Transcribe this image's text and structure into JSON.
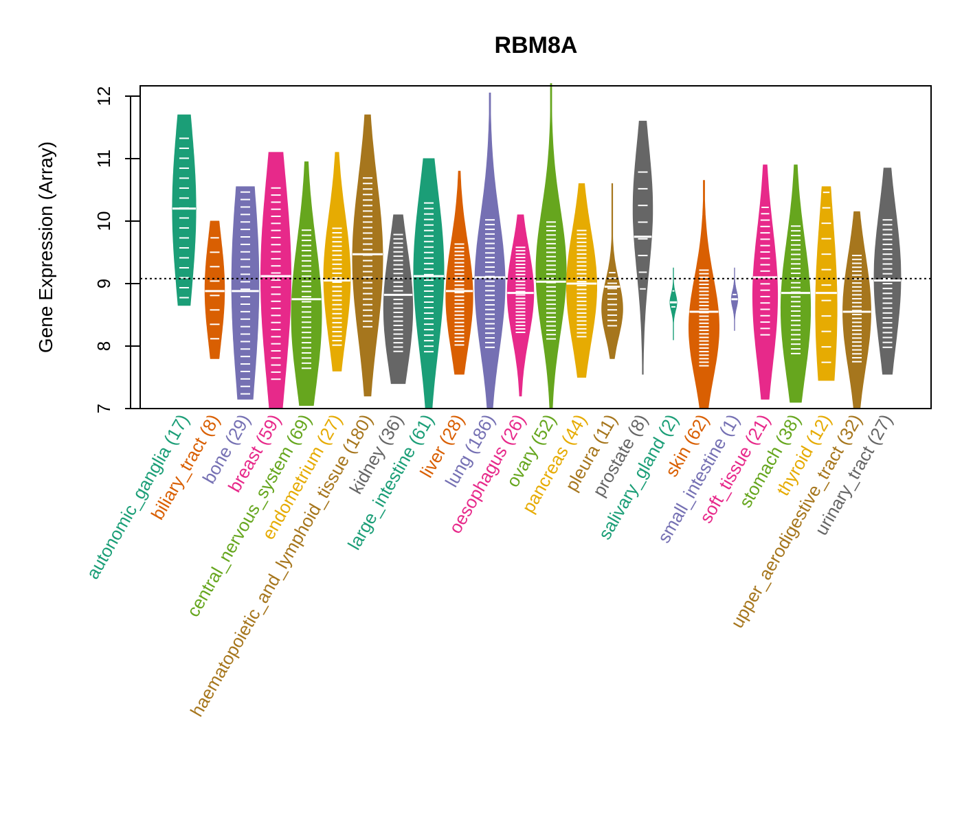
{
  "chart_data": {
    "type": "violin",
    "title": "RBM8A",
    "xlabel": "",
    "ylabel": "Gene Expression (Array)",
    "ylim": [
      7,
      12.2
    ],
    "yticks": [
      7,
      8,
      9,
      10,
      11,
      12
    ],
    "reference_line": {
      "value": 9.08,
      "style": "dotted",
      "color": "#000000"
    },
    "grid": false,
    "legend": "none",
    "categories": [
      {
        "name": "autonomic_ganglia",
        "n": 17,
        "label": "autonomic_ganglia (17)",
        "color": "#1B9E77",
        "min": 8.65,
        "max": 11.7,
        "median": 10.2,
        "q_low": 9.3,
        "q_high": 10.8,
        "density_peak": 10.2
      },
      {
        "name": "biliary_tract",
        "n": 8,
        "label": "biliary_tract (8)",
        "color": "#D95F02",
        "min": 7.8,
        "max": 10.0,
        "median": 8.88,
        "q_low": 8.45,
        "q_high": 9.4,
        "density_peak": 8.9
      },
      {
        "name": "bone",
        "n": 29,
        "label": "bone (29)",
        "color": "#7570B3",
        "min": 7.15,
        "max": 10.55,
        "median": 8.88,
        "q_low": 7.9,
        "q_high": 9.8,
        "density_peak": 9.0
      },
      {
        "name": "breast",
        "n": 59,
        "label": "breast (59)",
        "color": "#E7298A",
        "min": 7.0,
        "max": 11.1,
        "median": 9.12,
        "q_low": 8.1,
        "q_high": 9.9,
        "density_peak": 9.1
      },
      {
        "name": "central_nervous_system",
        "n": 69,
        "label": "central_nervous_system (69)",
        "color": "#66A61E",
        "min": 7.05,
        "max": 10.95,
        "median": 8.75,
        "q_low": 8.1,
        "q_high": 9.4,
        "density_peak": 8.5
      },
      {
        "name": "endometrium",
        "n": 27,
        "label": "endometrium (27)",
        "color": "#E6AB02",
        "min": 7.6,
        "max": 11.1,
        "median": 9.05,
        "q_low": 8.4,
        "q_high": 9.5,
        "density_peak": 9.1
      },
      {
        "name": "haematopoietic_and_lymphoid_tissue",
        "n": 180,
        "label": "haematopoietic_and_lymphoid_tissue (180)",
        "color": "#A6761D",
        "min": 7.2,
        "max": 11.7,
        "median": 9.47,
        "q_low": 8.8,
        "q_high": 10.2,
        "density_peak": 9.4
      },
      {
        "name": "kidney",
        "n": 36,
        "label": "kidney (36)",
        "color": "#666666",
        "min": 7.4,
        "max": 10.1,
        "median": 8.82,
        "q_low": 8.3,
        "q_high": 9.4,
        "density_peak": 8.6
      },
      {
        "name": "large_intestine",
        "n": 61,
        "label": "large_intestine (61)",
        "color": "#1B9E77",
        "min": 7.0,
        "max": 11.0,
        "median": 9.12,
        "q_low": 8.4,
        "q_high": 9.8,
        "density_peak": 9.2
      },
      {
        "name": "liver",
        "n": 28,
        "label": "liver (28)",
        "color": "#D95F02",
        "min": 7.55,
        "max": 10.8,
        "median": 8.88,
        "q_low": 8.35,
        "q_high": 9.3,
        "density_peak": 8.8
      },
      {
        "name": "lung",
        "n": 186,
        "label": "lung (186)",
        "color": "#7570B3",
        "min": 7.0,
        "max": 12.05,
        "median": 9.1,
        "q_low": 8.4,
        "q_high": 9.6,
        "density_peak": 9.0
      },
      {
        "name": "oesophagus",
        "n": 26,
        "label": "oesophagus (26)",
        "color": "#E7298A",
        "min": 7.2,
        "max": 10.1,
        "median": 8.85,
        "q_low": 8.5,
        "q_high": 9.3,
        "density_peak": 8.85
      },
      {
        "name": "ovary",
        "n": 52,
        "label": "ovary (52)",
        "color": "#66A61E",
        "min": 7.0,
        "max": 12.2,
        "median": 9.03,
        "q_low": 8.5,
        "q_high": 9.6,
        "density_peak": 9.2
      },
      {
        "name": "pancreas",
        "n": 44,
        "label": "pancreas (44)",
        "color": "#E6AB02",
        "min": 7.5,
        "max": 10.6,
        "median": 9.0,
        "q_low": 8.5,
        "q_high": 9.5,
        "density_peak": 8.95
      },
      {
        "name": "pleura",
        "n": 11,
        "label": "pleura (11)",
        "color": "#A6761D",
        "min": 7.8,
        "max": 10.6,
        "median": 8.95,
        "q_low": 8.5,
        "q_high": 9.0,
        "density_peak": 8.6
      },
      {
        "name": "prostate",
        "n": 8,
        "label": "prostate (8)",
        "color": "#666666",
        "min": 7.55,
        "max": 11.6,
        "median": 9.75,
        "q_low": 9.3,
        "q_high": 10.4,
        "density_peak": 10.2
      },
      {
        "name": "salivary_gland",
        "n": 2,
        "label": "salivary_gland (2)",
        "color": "#1B9E77",
        "min": 8.1,
        "max": 9.25,
        "median": 8.7,
        "q_low": 8.68,
        "q_high": 8.72,
        "density_peak": 8.7
      },
      {
        "name": "skin",
        "n": 62,
        "label": "skin (62)",
        "color": "#D95F02",
        "min": 7.0,
        "max": 10.65,
        "median": 8.55,
        "q_low": 8.0,
        "q_high": 8.9,
        "density_peak": 8.3
      },
      {
        "name": "small_intestine",
        "n": 1,
        "label": "small_intestine (1)",
        "color": "#7570B3",
        "min": 8.25,
        "max": 9.25,
        "median": 8.75,
        "q_low": 8.75,
        "q_high": 8.75,
        "density_peak": 8.75
      },
      {
        "name": "soft_tissue",
        "n": 21,
        "label": "soft_tissue (21)",
        "color": "#E7298A",
        "min": 7.15,
        "max": 10.9,
        "median": 9.1,
        "q_low": 8.6,
        "q_high": 9.8,
        "density_peak": 8.8
      },
      {
        "name": "stomach",
        "n": 38,
        "label": "stomach (38)",
        "color": "#66A61E",
        "min": 7.1,
        "max": 10.9,
        "median": 8.85,
        "q_low": 8.3,
        "q_high": 9.5,
        "density_peak": 8.6
      },
      {
        "name": "thyroid",
        "n": 12,
        "label": "thyroid (12)",
        "color": "#E6AB02",
        "min": 7.45,
        "max": 10.55,
        "median": 8.85,
        "q_low": 8.3,
        "q_high": 9.9,
        "density_peak": 8.6
      },
      {
        "name": "upper_aerodigestive_tract",
        "n": 32,
        "label": "upper_aerodigestive_tract (32)",
        "color": "#A6761D",
        "min": 7.0,
        "max": 10.15,
        "median": 8.55,
        "q_low": 8.1,
        "q_high": 9.1,
        "density_peak": 8.55
      },
      {
        "name": "urinary_tract",
        "n": 27,
        "label": "urinary_tract (27)",
        "color": "#666666",
        "min": 7.55,
        "max": 10.85,
        "median": 9.05,
        "q_low": 8.4,
        "q_high": 9.6,
        "density_peak": 9.1
      }
    ]
  }
}
